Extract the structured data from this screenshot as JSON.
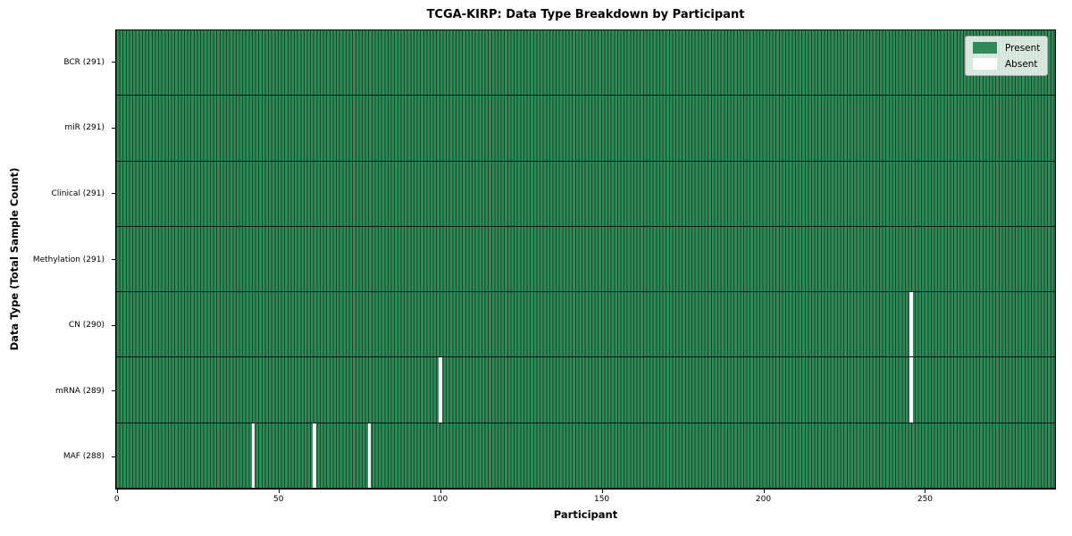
{
  "title": "TCGA-KIRP: Data Type Breakdown by Participant",
  "chart_data": {
    "type": "heatmap",
    "title": "TCGA-KIRP: Data Type Breakdown by Participant",
    "xlabel": "Participant",
    "ylabel": "Data Type (Total Sample Count)",
    "n_participants": 291,
    "xlim": [
      -0.5,
      290.5
    ],
    "x_ticks": [
      0,
      50,
      100,
      150,
      200,
      250
    ],
    "grid": "row-separators-and-column-edges",
    "legend_position": "upper-right",
    "legend": [
      {
        "label": "Present",
        "color": "#2e8b57"
      },
      {
        "label": "Absent",
        "color": "#ffffff"
      }
    ],
    "colors": {
      "present": "#2e8b57",
      "absent": "#ffffff",
      "column_edge": "#17462c",
      "row_separator": "#000000"
    },
    "rows": [
      {
        "data_type": "BCR",
        "label": "BCR (291)",
        "present_count": 291,
        "absent_participants": []
      },
      {
        "data_type": "miR",
        "label": "miR (291)",
        "present_count": 291,
        "absent_participants": []
      },
      {
        "data_type": "Clinical",
        "label": "Clinical (291)",
        "present_count": 291,
        "absent_participants": []
      },
      {
        "data_type": "Methylation",
        "label": "Methylation (291)",
        "present_count": 291,
        "absent_participants": []
      },
      {
        "data_type": "CN",
        "label": "CN (290)",
        "present_count": 290,
        "absent_participants": [
          246
        ]
      },
      {
        "data_type": "mRNA",
        "label": "mRNA (289)",
        "present_count": 289,
        "absent_participants": [
          100,
          246
        ]
      },
      {
        "data_type": "MAF",
        "label": "MAF (288)",
        "present_count": 288,
        "absent_participants": [
          42,
          61,
          78
        ]
      }
    ]
  }
}
